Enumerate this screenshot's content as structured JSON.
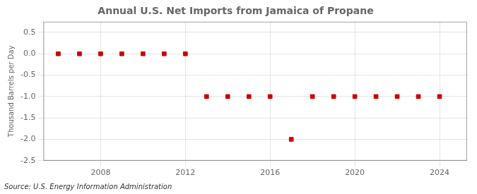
{
  "chart_data": {
    "type": "scatter",
    "title": "Annual U.S. Net Imports from Jamaica of Propane",
    "ylabel": "Thousand Barrels per Day",
    "source": "Source: U.S. Energy Information Administration",
    "x": [
      2006,
      2007,
      2008,
      2009,
      2010,
      2011,
      2012,
      2013,
      2014,
      2015,
      2016,
      2017,
      2018,
      2019,
      2020,
      2021,
      2022,
      2023,
      2024
    ],
    "values": [
      0,
      0,
      0,
      0,
      0,
      0,
      0,
      -1,
      -1,
      -1,
      -1,
      -2,
      -1,
      -1,
      -1,
      -1,
      -1,
      -1,
      -1
    ],
    "color": "#cc0000",
    "marker": "square",
    "xlim": [
      2005.3,
      2025.3
    ],
    "xticks": [
      2008,
      2012,
      2016,
      2020,
      2024
    ],
    "ylim": [
      -2.5,
      0.75
    ],
    "yticks": [
      0.5,
      {
        "value": 0,
        "label": "0.0"
      },
      -0.5,
      {
        "value": -1,
        "label": "-1.0"
      },
      -1.5,
      {
        "value": -2,
        "label": "-2.0"
      },
      -2.5
    ],
    "grid": true
  }
}
